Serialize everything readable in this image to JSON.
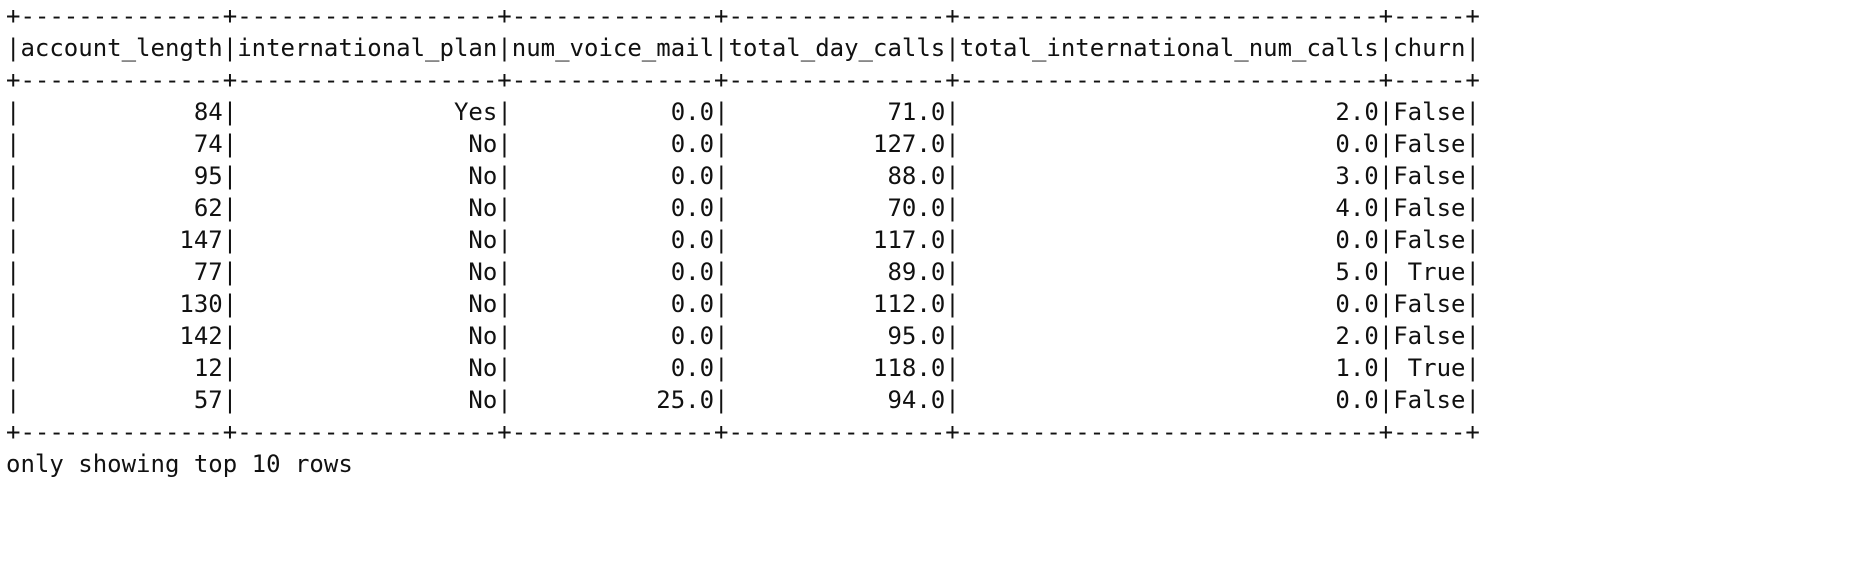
{
  "table": {
    "columns": [
      "account_length",
      "international_plan",
      "num_voice_mail",
      "total_day_calls",
      "total_international_num_calls",
      "churn"
    ],
    "rows": [
      [
        "84",
        "Yes",
        "0.0",
        "71.0",
        "2.0",
        "False"
      ],
      [
        "74",
        "No",
        "0.0",
        "127.0",
        "0.0",
        "False"
      ],
      [
        "95",
        "No",
        "0.0",
        "88.0",
        "3.0",
        "False"
      ],
      [
        "62",
        "No",
        "0.0",
        "70.0",
        "4.0",
        "False"
      ],
      [
        "147",
        "No",
        "0.0",
        "117.0",
        "0.0",
        "False"
      ],
      [
        "77",
        "No",
        "0.0",
        "89.0",
        "5.0",
        "True"
      ],
      [
        "130",
        "No",
        "0.0",
        "112.0",
        "0.0",
        "False"
      ],
      [
        "142",
        "No",
        "0.0",
        "95.0",
        "2.0",
        "False"
      ],
      [
        "12",
        "No",
        "0.0",
        "118.0",
        "1.0",
        "True"
      ],
      [
        "57",
        "No",
        "25.0",
        "94.0",
        "0.0",
        "False"
      ]
    ]
  },
  "footer": "only showing top 10 rows"
}
